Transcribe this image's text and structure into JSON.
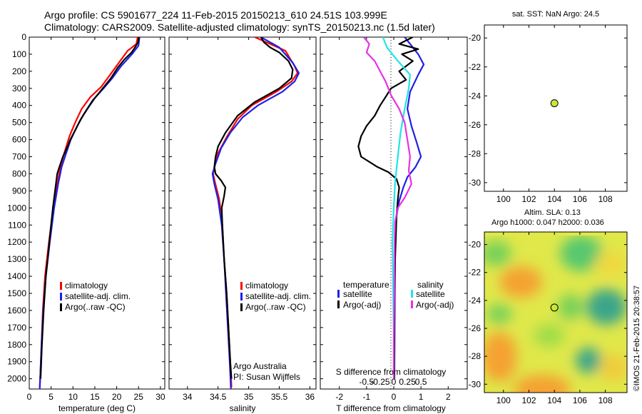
{
  "header": {
    "line1": "Argo profile: CS 5901677_224 11-Feb-2015 20150213_610 24.51S 103.999E",
    "line2": "Climatology: CARS2009. Satellite-adjusted climatology: synTS_20150213.nc (1.5d later)"
  },
  "colors": {
    "red": "#ff0000",
    "blue": "#1f1fe6",
    "black": "#000000",
    "cyan": "#22e5e5",
    "magenta": "#e632e6",
    "marker": "#c8e632"
  },
  "side_stamp": "©IMOS 21-Feb-2015 20:38:57",
  "chart_data": [
    {
      "id": "temperature",
      "type": "line",
      "xlabel": "temperature (deg C)",
      "xlim": [
        0,
        31
      ],
      "ylim": [
        0,
        2060
      ],
      "xticks": [
        0,
        5,
        10,
        15,
        20,
        25,
        30
      ],
      "yticks": [
        0,
        100,
        200,
        300,
        400,
        500,
        600,
        700,
        800,
        900,
        1000,
        1100,
        1200,
        1300,
        1400,
        1500,
        1600,
        1700,
        1800,
        1900,
        2000
      ],
      "legend": [
        "climatology",
        "satellite-adj. clim.",
        "Argo(..raw -QC)"
      ],
      "series": [
        {
          "name": "climatology",
          "color": "red",
          "points": [
            [
              24.8,
              0
            ],
            [
              24.5,
              40
            ],
            [
              22.5,
              80
            ],
            [
              20.5,
              150
            ],
            [
              18.5,
              220
            ],
            [
              16.5,
              290
            ],
            [
              14,
              350
            ],
            [
              12,
              420
            ],
            [
              10.5,
              500
            ],
            [
              9.2,
              580
            ],
            [
              8,
              680
            ],
            [
              7.2,
              750
            ],
            [
              6.5,
              850
            ],
            [
              5.5,
              1000
            ],
            [
              4.5,
              1200
            ],
            [
              3.6,
              1400
            ],
            [
              3.1,
              1600
            ],
            [
              2.8,
              1800
            ],
            [
              2.5,
              2000
            ],
            [
              2.4,
              2050
            ]
          ]
        },
        {
          "name": "satellite-adj. clim.",
          "color": "blue",
          "points": [
            [
              25.2,
              0
            ],
            [
              25,
              50
            ],
            [
              23.5,
              100
            ],
            [
              21,
              170
            ],
            [
              19,
              240
            ],
            [
              17,
              300
            ],
            [
              14.5,
              370
            ],
            [
              12.5,
              450
            ],
            [
              11,
              520
            ],
            [
              9.5,
              600
            ],
            [
              8.3,
              690
            ],
            [
              7.4,
              760
            ],
            [
              6.6,
              860
            ],
            [
              5.7,
              1000
            ],
            [
              4.7,
              1200
            ],
            [
              3.8,
              1400
            ],
            [
              3.2,
              1600
            ],
            [
              2.8,
              1800
            ],
            [
              2.5,
              2000
            ],
            [
              2.4,
              2060
            ]
          ]
        },
        {
          "name": "Argo(..raw -QC)",
          "color": "black",
          "points": [
            [
              25.1,
              0
            ],
            [
              24.9,
              30
            ],
            [
              24.2,
              60
            ],
            [
              23.4,
              90
            ],
            [
              21.8,
              130
            ],
            [
              20.2,
              180
            ],
            [
              18.7,
              240
            ],
            [
              16.8,
              300
            ],
            [
              14.9,
              360
            ],
            [
              13.3,
              420
            ],
            [
              11.8,
              480
            ],
            [
              10.6,
              540
            ],
            [
              9.4,
              600
            ],
            [
              8.6,
              650
            ],
            [
              7.7,
              700
            ],
            [
              6.9,
              760
            ],
            [
              6.4,
              800
            ],
            [
              6.1,
              860
            ],
            [
              5.4,
              1000
            ],
            [
              4.6,
              1200
            ],
            [
              3.8,
              1400
            ],
            [
              3.3,
              1600
            ],
            [
              2.9,
              1800
            ],
            [
              2.6,
              2000
            ]
          ]
        }
      ]
    },
    {
      "id": "salinity",
      "type": "line",
      "xlabel": "salinity",
      "xlim": [
        33.7,
        36.1
      ],
      "ylim": [
        0,
        2060
      ],
      "xticks": [
        34,
        34.5,
        35,
        35.5,
        36
      ],
      "legend": [
        "climatology",
        "satellite-adj. clim.",
        "Argo(..raw -QC)"
      ],
      "annotation": [
        "Argo Australia",
        "PI: Susan Wijffels"
      ],
      "series": [
        {
          "name": "climatology",
          "color": "red",
          "points": [
            [
              35.1,
              0
            ],
            [
              35.6,
              80
            ],
            [
              35.75,
              170
            ],
            [
              35.8,
              210
            ],
            [
              35.7,
              260
            ],
            [
              35.45,
              320
            ],
            [
              35.05,
              400
            ],
            [
              34.82,
              480
            ],
            [
              34.65,
              580
            ],
            [
              34.5,
              680
            ],
            [
              34.44,
              760
            ],
            [
              34.42,
              800
            ],
            [
              34.45,
              850
            ],
            [
              34.52,
              950
            ],
            [
              34.57,
              1100
            ],
            [
              34.6,
              1300
            ],
            [
              34.64,
              1500
            ],
            [
              34.67,
              1700
            ],
            [
              34.7,
              1900
            ],
            [
              34.72,
              2050
            ]
          ]
        },
        {
          "name": "satellite-adj. clim.",
          "color": "blue",
          "points": [
            [
              35.2,
              0
            ],
            [
              35.5,
              60
            ],
            [
              35.72,
              150
            ],
            [
              35.82,
              210
            ],
            [
              35.75,
              260
            ],
            [
              35.55,
              320
            ],
            [
              35.15,
              400
            ],
            [
              34.9,
              470
            ],
            [
              34.7,
              560
            ],
            [
              34.55,
              650
            ],
            [
              34.46,
              740
            ],
            [
              34.41,
              800
            ],
            [
              34.44,
              860
            ],
            [
              34.5,
              950
            ],
            [
              34.56,
              1100
            ],
            [
              34.6,
              1300
            ],
            [
              34.63,
              1500
            ],
            [
              34.66,
              1700
            ],
            [
              34.69,
              1900
            ],
            [
              34.71,
              2060
            ]
          ]
        },
        {
          "name": "Argo(..raw -QC)",
          "color": "black",
          "points": [
            [
              35.2,
              0
            ],
            [
              35.25,
              30
            ],
            [
              35.35,
              60
            ],
            [
              35.5,
              90
            ],
            [
              35.65,
              140
            ],
            [
              35.72,
              190
            ],
            [
              35.7,
              240
            ],
            [
              35.5,
              300
            ],
            [
              35.1,
              380
            ],
            [
              34.82,
              460
            ],
            [
              34.62,
              560
            ],
            [
              34.5,
              640
            ],
            [
              34.46,
              700
            ],
            [
              34.44,
              760
            ],
            [
              34.46,
              800
            ],
            [
              34.55,
              840
            ],
            [
              34.62,
              880
            ],
            [
              34.6,
              930
            ],
            [
              34.56,
              1000
            ],
            [
              34.57,
              1100
            ],
            [
              34.6,
              1300
            ],
            [
              34.64,
              1500
            ],
            [
              34.67,
              1700
            ],
            [
              34.7,
              1900
            ],
            [
              34.72,
              2000
            ]
          ]
        }
      ]
    },
    {
      "id": "differences",
      "type": "line",
      "xlabel": "T difference from climatology",
      "secondary_xlabel": "S difference from climatology",
      "xlim": [
        -2.7,
        2.7
      ],
      "ylim": [
        0,
        2060
      ],
      "xticks": [
        -2,
        -1,
        0,
        1,
        2
      ],
      "secondary_xticks": [
        "-0.5",
        "-0.25",
        "0",
        "0.25",
        "0.5"
      ],
      "legend_titles": [
        "temperature",
        "salinity"
      ],
      "legend": [
        "satellite",
        "Argo(-adj)",
        "satellite",
        "Argo(-adj)"
      ],
      "series": [
        {
          "name": "temperature satellite",
          "color": "blue",
          "points": [
            [
              0.4,
              0
            ],
            [
              0.6,
              40
            ],
            [
              0.9,
              100
            ],
            [
              1.1,
              160
            ],
            [
              0.9,
              220
            ],
            [
              0.6,
              320
            ],
            [
              0.5,
              420
            ],
            [
              0.65,
              520
            ],
            [
              0.85,
              620
            ],
            [
              1.0,
              700
            ],
            [
              0.8,
              760
            ],
            [
              0.5,
              820
            ],
            [
              0.35,
              880
            ],
            [
              0.2,
              960
            ],
            [
              0.1,
              1050
            ],
            [
              0.05,
              1200
            ],
            [
              0.04,
              1500
            ],
            [
              0.03,
              1800
            ],
            [
              0.02,
              2000
            ]
          ]
        },
        {
          "name": "temperature Argo(-adj)",
          "color": "black",
          "points": [
            [
              0.7,
              0
            ],
            [
              0.2,
              40
            ],
            [
              0.9,
              70
            ],
            [
              0.3,
              100
            ],
            [
              0.7,
              140
            ],
            [
              0.2,
              200
            ],
            [
              0.45,
              250
            ],
            [
              -0.1,
              300
            ],
            [
              -0.3,
              350
            ],
            [
              -0.5,
              400
            ],
            [
              -0.7,
              460
            ],
            [
              -1.0,
              520
            ],
            [
              -1.2,
              580
            ],
            [
              -1.3,
              640
            ],
            [
              -1.2,
              700
            ],
            [
              -0.6,
              760
            ],
            [
              -0.2,
              790
            ],
            [
              0.1,
              830
            ],
            [
              0.2,
              880
            ],
            [
              0.15,
              950
            ],
            [
              0.1,
              1050
            ],
            [
              0.08,
              1150
            ],
            [
              0.05,
              1300
            ],
            [
              0.03,
              1500
            ],
            [
              0.02,
              1800
            ],
            [
              0.02,
              2000
            ]
          ]
        },
        {
          "name": "salinity satellite",
          "color": "cyan",
          "points": [
            [
              -0.4,
              0
            ],
            [
              -0.25,
              60
            ],
            [
              0.1,
              130
            ],
            [
              0.6,
              220
            ],
            [
              0.55,
              300
            ],
            [
              0.4,
              420
            ],
            [
              0.25,
              560
            ],
            [
              0.15,
              700
            ],
            [
              0.05,
              850
            ],
            [
              0.0,
              1000
            ],
            [
              -0.05,
              1200
            ],
            [
              -0.02,
              1500
            ],
            [
              0.0,
              1800
            ],
            [
              0.0,
              2000
            ]
          ]
        },
        {
          "name": "salinity Argo(-adj)",
          "color": "magenta",
          "points": [
            [
              -1.1,
              0
            ],
            [
              -0.9,
              40
            ],
            [
              -1.0,
              90
            ],
            [
              -0.7,
              140
            ],
            [
              -0.5,
              200
            ],
            [
              -0.3,
              260
            ],
            [
              -0.1,
              340
            ],
            [
              0.2,
              420
            ],
            [
              0.4,
              500
            ],
            [
              0.5,
              600
            ],
            [
              0.6,
              700
            ],
            [
              0.55,
              780
            ],
            [
              0.65,
              860
            ],
            [
              0.4,
              940
            ],
            [
              0.15,
              1000
            ],
            [
              0.05,
              1080
            ],
            [
              0.03,
              1200
            ],
            [
              0.02,
              1500
            ],
            [
              0.0,
              1800
            ],
            [
              0.0,
              2000
            ]
          ]
        }
      ]
    },
    {
      "id": "sst-map",
      "type": "scatter",
      "title": "sat. SST: NaN Argo: 24.5",
      "xlim": [
        98.5,
        109.7
      ],
      "ylim": [
        -30.6,
        -19.1
      ],
      "xticks": [
        100,
        102,
        104,
        106,
        108
      ],
      "yticks": [
        -20,
        -22,
        -24,
        -26,
        -28,
        -30
      ],
      "points": [
        [
          104.0,
          -24.51
        ]
      ]
    },
    {
      "id": "sla-map",
      "type": "heatmap",
      "title": [
        "Altim. SLA: 0.13",
        "Argo h1000: 0.047 h2000: 0.036"
      ],
      "xlim": [
        98.5,
        109.7
      ],
      "ylim": [
        -30.6,
        -19.1
      ],
      "xticks": [
        100,
        102,
        104,
        106,
        108
      ],
      "yticks": [
        -20,
        -22,
        -24,
        -26,
        -28,
        -30
      ],
      "points": [
        [
          104.0,
          -24.51
        ]
      ]
    }
  ]
}
